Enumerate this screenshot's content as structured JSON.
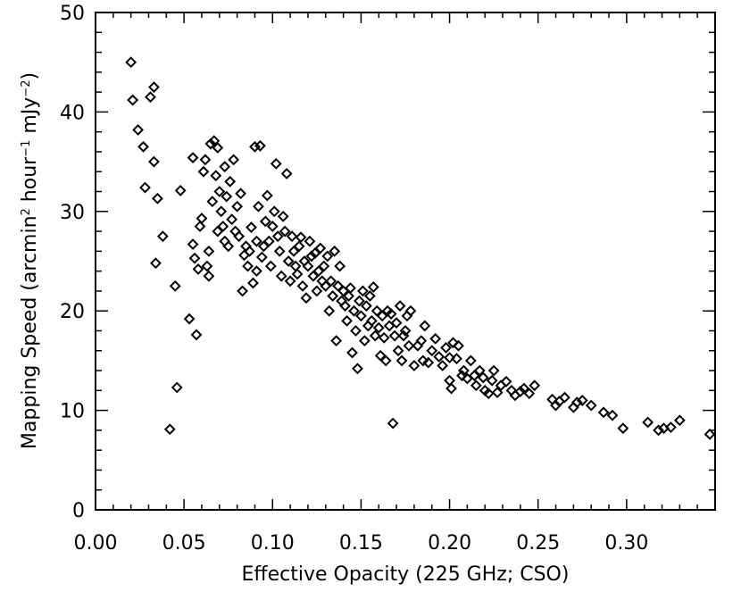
{
  "chart_data": {
    "type": "scatter",
    "title": "",
    "xlabel": "Effective Opacity (225 GHz; CSO)",
    "ylabel_main": "Mapping Speed (arcmin",
    "ylabel_sup1": "2",
    "ylabel_mid": " hour",
    "ylabel_sup2": "−1",
    "ylabel_end": " mJy",
    "ylabel_sup3": "−2",
    "ylabel_close": ")",
    "xlim": [
      0.0,
      0.35
    ],
    "ylim": [
      0,
      50
    ],
    "xticks": [
      0.0,
      0.05,
      0.1,
      0.15,
      0.2,
      0.25,
      0.3
    ],
    "xtick_labels": [
      "0.00",
      "0.05",
      "0.10",
      "0.15",
      "0.20",
      "0.25",
      "0.30"
    ],
    "yticks": [
      0,
      10,
      20,
      30,
      40,
      50
    ],
    "ytick_labels": [
      "0",
      "10",
      "20",
      "30",
      "40",
      "50"
    ],
    "grid": false,
    "marker": "open-diamond",
    "points": [
      [
        0.02,
        45.0
      ],
      [
        0.021,
        41.2
      ],
      [
        0.024,
        38.2
      ],
      [
        0.027,
        36.5
      ],
      [
        0.028,
        32.4
      ],
      [
        0.031,
        41.5
      ],
      [
        0.033,
        42.5
      ],
      [
        0.033,
        35.0
      ],
      [
        0.034,
        24.8
      ],
      [
        0.035,
        31.3
      ],
      [
        0.038,
        27.5
      ],
      [
        0.042,
        8.1
      ],
      [
        0.045,
        22.5
      ],
      [
        0.046,
        12.3
      ],
      [
        0.048,
        32.1
      ],
      [
        0.053,
        19.2
      ],
      [
        0.055,
        26.7
      ],
      [
        0.055,
        35.4
      ],
      [
        0.056,
        25.3
      ],
      [
        0.057,
        17.6
      ],
      [
        0.058,
        24.2
      ],
      [
        0.059,
        28.5
      ],
      [
        0.06,
        29.3
      ],
      [
        0.061,
        34.0
      ],
      [
        0.062,
        35.2
      ],
      [
        0.063,
        24.5
      ],
      [
        0.064,
        23.5
      ],
      [
        0.064,
        26.0
      ],
      [
        0.065,
        36.8
      ],
      [
        0.066,
        31.0
      ],
      [
        0.067,
        37.1
      ],
      [
        0.068,
        33.6
      ],
      [
        0.069,
        36.4
      ],
      [
        0.069,
        28.0
      ],
      [
        0.07,
        32.0
      ],
      [
        0.071,
        30.0
      ],
      [
        0.072,
        28.5
      ],
      [
        0.073,
        34.5
      ],
      [
        0.073,
        27.0
      ],
      [
        0.074,
        31.5
      ],
      [
        0.075,
        26.5
      ],
      [
        0.076,
        33.0
      ],
      [
        0.077,
        29.2
      ],
      [
        0.078,
        35.2
      ],
      [
        0.079,
        28.0
      ],
      [
        0.08,
        30.5
      ],
      [
        0.081,
        27.5
      ],
      [
        0.082,
        31.8
      ],
      [
        0.083,
        22.0
      ],
      [
        0.084,
        25.6
      ],
      [
        0.085,
        26.5
      ],
      [
        0.086,
        24.5
      ],
      [
        0.087,
        26.0
      ],
      [
        0.088,
        28.4
      ],
      [
        0.089,
        22.8
      ],
      [
        0.09,
        36.5
      ],
      [
        0.091,
        27.0
      ],
      [
        0.091,
        24.0
      ],
      [
        0.092,
        30.5
      ],
      [
        0.093,
        36.6
      ],
      [
        0.094,
        25.4
      ],
      [
        0.095,
        26.5
      ],
      [
        0.096,
        29.0
      ],
      [
        0.097,
        31.6
      ],
      [
        0.098,
        27.0
      ],
      [
        0.099,
        24.5
      ],
      [
        0.1,
        28.5
      ],
      [
        0.101,
        30.0
      ],
      [
        0.102,
        34.8
      ],
      [
        0.103,
        27.5
      ],
      [
        0.104,
        26.0
      ],
      [
        0.105,
        23.5
      ],
      [
        0.106,
        29.5
      ],
      [
        0.107,
        28.0
      ],
      [
        0.108,
        33.8
      ],
      [
        0.109,
        25.0
      ],
      [
        0.11,
        23.0
      ],
      [
        0.111,
        27.5
      ],
      [
        0.112,
        26.0
      ],
      [
        0.113,
        24.5
      ],
      [
        0.114,
        23.7
      ],
      [
        0.115,
        26.5
      ],
      [
        0.116,
        27.4
      ],
      [
        0.117,
        22.5
      ],
      [
        0.118,
        25.0
      ],
      [
        0.119,
        21.3
      ],
      [
        0.12,
        24.5
      ],
      [
        0.121,
        27.0
      ],
      [
        0.122,
        25.5
      ],
      [
        0.123,
        23.5
      ],
      [
        0.124,
        25.8
      ],
      [
        0.125,
        22.0
      ],
      [
        0.126,
        24.0
      ],
      [
        0.127,
        26.3
      ],
      [
        0.128,
        23.0
      ],
      [
        0.129,
        24.5
      ],
      [
        0.13,
        22.5
      ],
      [
        0.131,
        25.5
      ],
      [
        0.132,
        20.0
      ],
      [
        0.133,
        23.0
      ],
      [
        0.134,
        21.5
      ],
      [
        0.135,
        26.0
      ],
      [
        0.136,
        17.0
      ],
      [
        0.137,
        22.5
      ],
      [
        0.138,
        24.5
      ],
      [
        0.139,
        21.0
      ],
      [
        0.14,
        22.0
      ],
      [
        0.141,
        20.5
      ],
      [
        0.142,
        19.0
      ],
      [
        0.143,
        21.5
      ],
      [
        0.144,
        22.3
      ],
      [
        0.145,
        15.8
      ],
      [
        0.146,
        20.0
      ],
      [
        0.147,
        18.0
      ],
      [
        0.148,
        14.2
      ],
      [
        0.149,
        21.0
      ],
      [
        0.15,
        19.5
      ],
      [
        0.151,
        22.0
      ],
      [
        0.152,
        17.0
      ],
      [
        0.153,
        20.5
      ],
      [
        0.154,
        18.5
      ],
      [
        0.155,
        21.5
      ],
      [
        0.156,
        19.0
      ],
      [
        0.157,
        22.4
      ],
      [
        0.158,
        17.5
      ],
      [
        0.159,
        20.0
      ],
      [
        0.16,
        18.3
      ],
      [
        0.161,
        15.5
      ],
      [
        0.162,
        19.5
      ],
      [
        0.163,
        17.3
      ],
      [
        0.164,
        15.0
      ],
      [
        0.165,
        20.0
      ],
      [
        0.166,
        18.5
      ],
      [
        0.167,
        19.7
      ],
      [
        0.168,
        8.7
      ],
      [
        0.169,
        17.5
      ],
      [
        0.17,
        18.8
      ],
      [
        0.171,
        16.0
      ],
      [
        0.172,
        20.5
      ],
      [
        0.173,
        15.0
      ],
      [
        0.174,
        17.5
      ],
      [
        0.175,
        18.0
      ],
      [
        0.176,
        19.5
      ],
      [
        0.177,
        16.5
      ],
      [
        0.178,
        20.0
      ],
      [
        0.18,
        14.5
      ],
      [
        0.182,
        16.5
      ],
      [
        0.184,
        17.0
      ],
      [
        0.185,
        15.0
      ],
      [
        0.186,
        18.5
      ],
      [
        0.188,
        14.8
      ],
      [
        0.19,
        16.0
      ],
      [
        0.192,
        17.2
      ],
      [
        0.194,
        15.4
      ],
      [
        0.196,
        14.5
      ],
      [
        0.198,
        16.3
      ],
      [
        0.2,
        13.0
      ],
      [
        0.2,
        15.3
      ],
      [
        0.201,
        12.2
      ],
      [
        0.202,
        16.8
      ],
      [
        0.204,
        15.2
      ],
      [
        0.205,
        16.5
      ],
      [
        0.207,
        13.5
      ],
      [
        0.208,
        14.0
      ],
      [
        0.21,
        13.2
      ],
      [
        0.212,
        15.0
      ],
      [
        0.214,
        13.5
      ],
      [
        0.215,
        12.5
      ],
      [
        0.217,
        14.0
      ],
      [
        0.219,
        13.3
      ],
      [
        0.22,
        12.0
      ],
      [
        0.222,
        11.7
      ],
      [
        0.224,
        13.0
      ],
      [
        0.225,
        14.0
      ],
      [
        0.227,
        11.8
      ],
      [
        0.229,
        12.5
      ],
      [
        0.232,
        12.9
      ],
      [
        0.235,
        12.0
      ],
      [
        0.237,
        11.5
      ],
      [
        0.24,
        11.9
      ],
      [
        0.242,
        12.2
      ],
      [
        0.245,
        11.7
      ],
      [
        0.248,
        12.5
      ],
      [
        0.258,
        11.1
      ],
      [
        0.26,
        10.5
      ],
      [
        0.262,
        10.9
      ],
      [
        0.265,
        11.3
      ],
      [
        0.27,
        10.3
      ],
      [
        0.272,
        10.8
      ],
      [
        0.275,
        11.0
      ],
      [
        0.28,
        10.5
      ],
      [
        0.287,
        9.8
      ],
      [
        0.292,
        9.5
      ],
      [
        0.298,
        8.2
      ],
      [
        0.312,
        8.8
      ],
      [
        0.318,
        8.0
      ],
      [
        0.321,
        8.2
      ],
      [
        0.325,
        8.3
      ],
      [
        0.33,
        9.0
      ],
      [
        0.347,
        7.6
      ]
    ]
  }
}
